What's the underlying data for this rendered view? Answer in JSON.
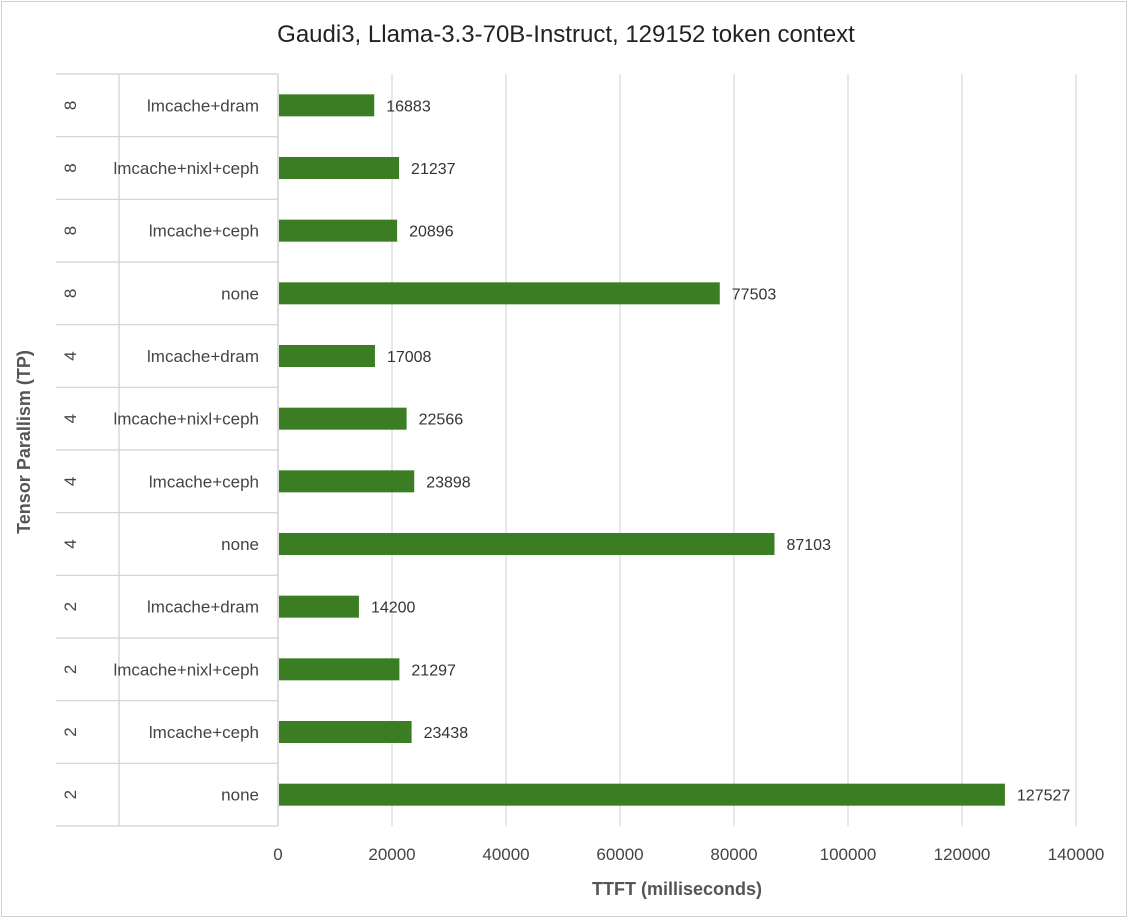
{
  "chart_data": {
    "type": "bar",
    "orientation": "horizontal",
    "title": "Gaudi3, Llama-3.3-70B-Instruct, 129152 token context",
    "xlabel": "TTFT (milliseconds)",
    "ylabel": "Tensor Parallism (TP)",
    "xlim": [
      0,
      140000
    ],
    "x_ticks": [
      "0",
      "20000",
      "40000",
      "60000",
      "80000",
      "100000",
      "120000",
      "140000"
    ],
    "grid": "vertical",
    "bar_color": "#3a7d22",
    "categories": [
      {
        "group": "8",
        "label": "lmcache+dram",
        "value": 16883
      },
      {
        "group": "8",
        "label": "lmcache+nixl+ceph",
        "value": 21237
      },
      {
        "group": "8",
        "label": "lmcache+ceph",
        "value": 20896
      },
      {
        "group": "8",
        "label": "none",
        "value": 77503
      },
      {
        "group": "4",
        "label": "lmcache+dram",
        "value": 17008
      },
      {
        "group": "4",
        "label": "lmcache+nixl+ceph",
        "value": 22566
      },
      {
        "group": "4",
        "label": "lmcache+ceph",
        "value": 23898
      },
      {
        "group": "4",
        "label": "none",
        "value": 87103
      },
      {
        "group": "2",
        "label": "lmcache+dram",
        "value": 14200
      },
      {
        "group": "2",
        "label": "lmcache+nixl+ceph",
        "value": 21297
      },
      {
        "group": "2",
        "label": "lmcache+ceph",
        "value": 23438
      },
      {
        "group": "2",
        "label": "none",
        "value": 127527
      }
    ]
  }
}
